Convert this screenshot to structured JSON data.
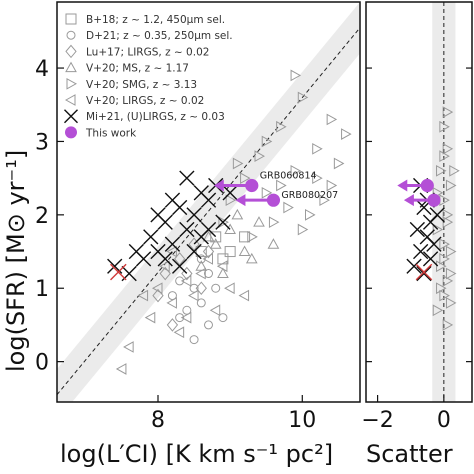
{
  "chart_data": [
    {
      "type": "scatter",
      "panel": "main",
      "xlabel": "log(L′CI) [K km s⁻¹ pc²]",
      "ylabel": "log(SFR) [M⊙ yr⁻¹]",
      "xlim": [
        6.6,
        10.8
      ],
      "ylim": [
        -0.55,
        4.9
      ],
      "xticks": [
        8,
        10
      ],
      "xtick_labels": [
        "8",
        "10"
      ],
      "yticks": [
        0,
        1,
        2,
        3,
        4
      ],
      "ytick_labels": [
        "0",
        "1",
        "2",
        "3",
        "4"
      ],
      "legend_position": "top-left",
      "legend": [
        {
          "label": "B+18; z ~ 1.2, 450μm sel.",
          "marker": "square",
          "color": "#9a9a9a"
        },
        {
          "label": "D+21; z ~ 0.35, 250μm sel.",
          "marker": "circle",
          "color": "#9a9a9a"
        },
        {
          "label": "Lu+17; LIRGS, z ~ 0.02",
          "marker": "diamond",
          "color": "#9a9a9a"
        },
        {
          "label": "V+20; MS, z ~ 1.17",
          "marker": "triangle-up",
          "color": "#9a9a9a"
        },
        {
          "label": "V+20; SMG, z ~ 3.13",
          "marker": "triangle-right",
          "color": "#9a9a9a"
        },
        {
          "label": "V+20; LIRGS, z ~ 0.02",
          "marker": "triangle-left",
          "color": "#9a9a9a"
        },
        {
          "label": "Mi+21, (U)LIRGS, z ~ 0.03",
          "marker": "x",
          "color": "#111111"
        },
        {
          "label": "This work",
          "marker": "filled-circle",
          "color": "#b44fd6"
        }
      ],
      "relation": {
        "x": [
          6.6,
          10.8
        ],
        "y": [
          -0.45,
          4.55
        ],
        "band_halfwidth": 0.35
      },
      "highlight_points": [
        {
          "x": 7.45,
          "y": 1.22,
          "marker": "x",
          "color": "#d23a3a"
        }
      ],
      "this_work": [
        {
          "label": "GRB060814",
          "x": 9.3,
          "y": 2.4,
          "upper_limit_x": true
        },
        {
          "label": "GRB080207",
          "x": 9.6,
          "y": 2.2,
          "upper_limit_x": true
        }
      ],
      "series": [
        {
          "name": "V+20; SMG, z ~ 3.13",
          "marker": "triangle-right",
          "color": "#9a9a9a",
          "points": [
            [
              9.5,
              3.0
            ],
            [
              9.9,
              2.6
            ],
            [
              10.2,
              2.9
            ],
            [
              9.7,
              3.2
            ],
            [
              10.0,
              3.6
            ],
            [
              10.4,
              3.3
            ],
            [
              9.2,
              2.5
            ],
            [
              9.8,
              2.1
            ],
            [
              10.1,
              2.0
            ],
            [
              9.4,
              2.8
            ],
            [
              10.5,
              2.7
            ],
            [
              9.6,
              1.9
            ],
            [
              10.3,
              2.2
            ],
            [
              9.0,
              2.2
            ],
            [
              9.9,
              3.9
            ],
            [
              10.6,
              3.1
            ],
            [
              9.3,
              1.7
            ],
            [
              10.0,
              1.8
            ],
            [
              9.7,
              2.4
            ],
            [
              10.2,
              2.5
            ],
            [
              8.9,
              1.9
            ],
            [
              9.1,
              2.7
            ],
            [
              10.4,
              2.4
            ],
            [
              9.5,
              2.3
            ]
          ]
        },
        {
          "name": "V+20; MS, z ~ 1.17",
          "marker": "triangle-up",
          "color": "#9a9a9a",
          "points": [
            [
              8.8,
              1.6
            ],
            [
              9.0,
              1.8
            ],
            [
              9.2,
              1.5
            ],
            [
              8.6,
              1.3
            ],
            [
              9.4,
              1.9
            ],
            [
              8.9,
              1.2
            ],
            [
              9.1,
              2.0
            ],
            [
              8.7,
              1.7
            ],
            [
              9.3,
              1.4
            ],
            [
              9.6,
              1.6
            ]
          ]
        },
        {
          "name": "V+20; LIRGS, z ~ 0.02",
          "marker": "triangle-left",
          "color": "#9a9a9a",
          "points": [
            [
              8.0,
              1.0
            ],
            [
              8.2,
              0.8
            ],
            [
              8.4,
              1.1
            ],
            [
              7.9,
              0.6
            ],
            [
              8.3,
              0.4
            ],
            [
              8.5,
              0.9
            ],
            [
              8.1,
              1.3
            ],
            [
              7.6,
              0.2
            ],
            [
              8.6,
              1.2
            ],
            [
              8.8,
              0.7
            ],
            [
              7.8,
              0.9
            ],
            [
              8.7,
              1.4
            ],
            [
              8.2,
              1.5
            ],
            [
              9.0,
              1.0
            ],
            [
              8.4,
              0.6
            ],
            [
              8.9,
              1.3
            ],
            [
              7.5,
              -0.1
            ],
            [
              9.2,
              0.9
            ]
          ]
        },
        {
          "name": "D+21; z ~ 0.35, 250μm sel.",
          "marker": "circle",
          "color": "#9a9a9a",
          "points": [
            [
              8.3,
              1.1
            ],
            [
              8.5,
              1.0
            ],
            [
              8.7,
              1.2
            ],
            [
              8.4,
              0.7
            ],
            [
              8.6,
              0.8
            ],
            [
              8.8,
              1.0
            ],
            [
              8.2,
              0.9
            ],
            [
              8.9,
              0.6
            ],
            [
              8.5,
              0.3
            ],
            [
              8.7,
              0.5
            ],
            [
              8.3,
              0.6
            ],
            [
              8.6,
              1.4
            ]
          ]
        },
        {
          "name": "B+18; z ~ 1.2, 450μm sel.",
          "marker": "square",
          "color": "#9a9a9a",
          "points": [
            [
              8.8,
              1.7
            ],
            [
              9.0,
              1.5
            ],
            [
              8.6,
              1.5
            ],
            [
              9.2,
              1.7
            ],
            [
              8.9,
              1.4
            ]
          ]
        },
        {
          "name": "Lu+17; LIRGS, z ~ 0.02",
          "marker": "diamond",
          "color": "#9a9a9a",
          "points": [
            [
              8.1,
              1.2
            ],
            [
              8.3,
              1.4
            ],
            [
              8.5,
              1.6
            ],
            [
              8.0,
              0.9
            ],
            [
              8.4,
              1.2
            ],
            [
              8.6,
              1.0
            ],
            [
              8.2,
              0.5
            ],
            [
              8.7,
              1.5
            ]
          ]
        },
        {
          "name": "Mi+21, (U)LIRGS, z ~ 0.03",
          "marker": "x",
          "color": "#111111",
          "points": [
            [
              7.4,
              1.3
            ],
            [
              7.6,
              1.2
            ],
            [
              7.8,
              1.4
            ],
            [
              8.0,
              1.5
            ],
            [
              7.9,
              1.7
            ],
            [
              8.1,
              1.9
            ],
            [
              8.2,
              1.6
            ],
            [
              8.3,
              2.1
            ],
            [
              8.4,
              1.8
            ],
            [
              8.5,
              2.0
            ],
            [
              8.6,
              1.7
            ],
            [
              8.7,
              2.2
            ],
            [
              8.8,
              2.4
            ],
            [
              8.5,
              1.5
            ],
            [
              8.3,
              1.3
            ],
            [
              8.9,
              1.9
            ],
            [
              8.0,
              2.0
            ],
            [
              8.2,
              2.2
            ],
            [
              8.6,
              2.3
            ],
            [
              7.7,
              1.5
            ],
            [
              8.4,
              2.5
            ],
            [
              8.7,
              1.8
            ],
            [
              9.0,
              2.3
            ],
            [
              8.1,
              1.4
            ]
          ]
        }
      ]
    },
    {
      "type": "scatter",
      "panel": "scatter",
      "xlabel": "Scatter",
      "xlim": [
        -2.35,
        0.85
      ],
      "xticks": [
        -2,
        0
      ],
      "xtick_labels": [
        "−2",
        "0"
      ],
      "ylim": [
        -0.55,
        4.9
      ],
      "highlight_points": [
        {
          "x": -0.6,
          "y": 1.22,
          "marker": "x",
          "color": "#d23a3a"
        }
      ],
      "this_work": [
        {
          "x": -0.5,
          "y": 2.4,
          "upper_limit_x": true
        },
        {
          "x": -0.3,
          "y": 2.2,
          "upper_limit_x": true
        }
      ],
      "x_marks": [
        [
          -0.9,
          1.3
        ],
        [
          -0.7,
          1.5
        ],
        [
          -0.5,
          1.7
        ],
        [
          -0.4,
          1.9
        ],
        [
          -0.6,
          2.1
        ],
        [
          -0.3,
          1.6
        ],
        [
          -0.8,
          1.8
        ],
        [
          -0.5,
          2.2
        ],
        [
          -0.2,
          2.0
        ],
        [
          -0.7,
          2.4
        ],
        [
          -0.4,
          1.4
        ],
        [
          -0.6,
          1.2
        ]
      ],
      "gray_marks": [
        [
          0.0,
          3.2
        ],
        [
          0.1,
          2.9
        ],
        [
          -0.1,
          2.6
        ],
        [
          0.2,
          2.4
        ],
        [
          0.0,
          2.2
        ],
        [
          0.1,
          2.0
        ],
        [
          -0.2,
          1.8
        ],
        [
          0.0,
          1.6
        ],
        [
          0.2,
          1.5
        ],
        [
          -0.1,
          1.3
        ],
        [
          0.1,
          1.1
        ],
        [
          0.0,
          0.9
        ],
        [
          0.2,
          0.8
        ],
        [
          -0.2,
          0.7
        ],
        [
          0.1,
          0.5
        ],
        [
          0.0,
          2.8
        ],
        [
          0.3,
          2.6
        ],
        [
          0.1,
          1.9
        ],
        [
          -0.1,
          1.0
        ],
        [
          0.2,
          1.2
        ],
        [
          0.0,
          1.4
        ],
        [
          -0.2,
          2.3
        ],
        [
          0.1,
          3.4
        ]
      ]
    }
  ]
}
